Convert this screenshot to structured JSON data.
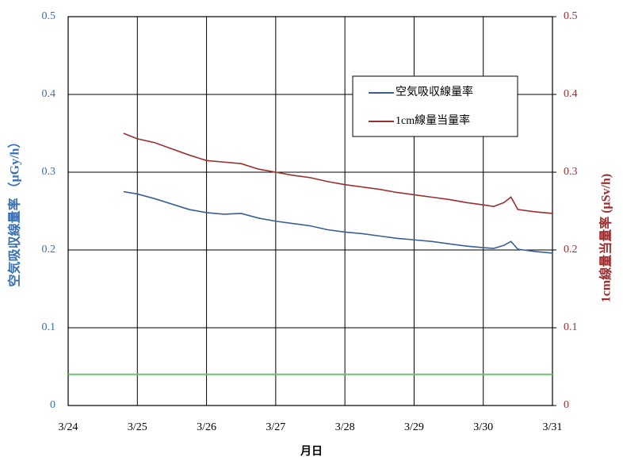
{
  "chart_data": {
    "type": "line",
    "xlabel": "月日",
    "ylabel": "空気吸収線量率 （μGy/h）",
    "y2label": "1cm線量当量率 (μSv/h)",
    "x": [
      24.8,
      25,
      25.25,
      25.5,
      25.75,
      26,
      26.25,
      26.5,
      26.75,
      27,
      27.25,
      27.5,
      27.75,
      28,
      28.25,
      28.5,
      28.75,
      29,
      29.25,
      29.5,
      29.75,
      30,
      30.15,
      30.3,
      30.4,
      30.5,
      30.75,
      31
    ],
    "series": [
      {
        "name": "空気吸収線量率",
        "color": "#3a5f95",
        "axis": "y",
        "values": [
          0.275,
          0.272,
          0.266,
          0.259,
          0.252,
          0.248,
          0.246,
          0.247,
          0.241,
          0.237,
          0.234,
          0.231,
          0.226,
          0.223,
          0.221,
          0.218,
          0.215,
          0.213,
          0.211,
          0.208,
          0.205,
          0.203,
          0.202,
          0.206,
          0.211,
          0.201,
          0.198,
          0.196
        ]
      },
      {
        "name": "1cm線量当量率",
        "color": "#9b2f2f",
        "axis": "y2",
        "values": [
          0.35,
          0.343,
          0.338,
          0.33,
          0.322,
          0.315,
          0.313,
          0.311,
          0.304,
          0.3,
          0.296,
          0.293,
          0.288,
          0.284,
          0.281,
          0.278,
          0.274,
          0.271,
          0.268,
          0.265,
          0.261,
          0.258,
          0.256,
          0.261,
          0.268,
          0.252,
          0.249,
          0.247
        ]
      }
    ],
    "reference_line": {
      "value": 0.04,
      "color": "#6cc46c"
    },
    "xlim": [
      24,
      31
    ],
    "xticks": [
      {
        "value": 24,
        "label": "3/24"
      },
      {
        "value": 25,
        "label": "3/25"
      },
      {
        "value": 26,
        "label": "3/26"
      },
      {
        "value": 27,
        "label": "3/27"
      },
      {
        "value": 28,
        "label": "3/28"
      },
      {
        "value": 29,
        "label": "3/29"
      },
      {
        "value": 30,
        "label": "3/30"
      },
      {
        "value": 31,
        "label": "3/31"
      }
    ],
    "ylim": [
      0,
      0.5
    ],
    "yticks": [
      0,
      0.1,
      0.2,
      0.3,
      0.4,
      0.5
    ],
    "y2lim": [
      0,
      0.5
    ],
    "y2ticks": [
      0,
      0.1,
      0.2,
      0.3,
      0.4,
      0.5
    ],
    "grid": true,
    "legend": "upper right"
  }
}
